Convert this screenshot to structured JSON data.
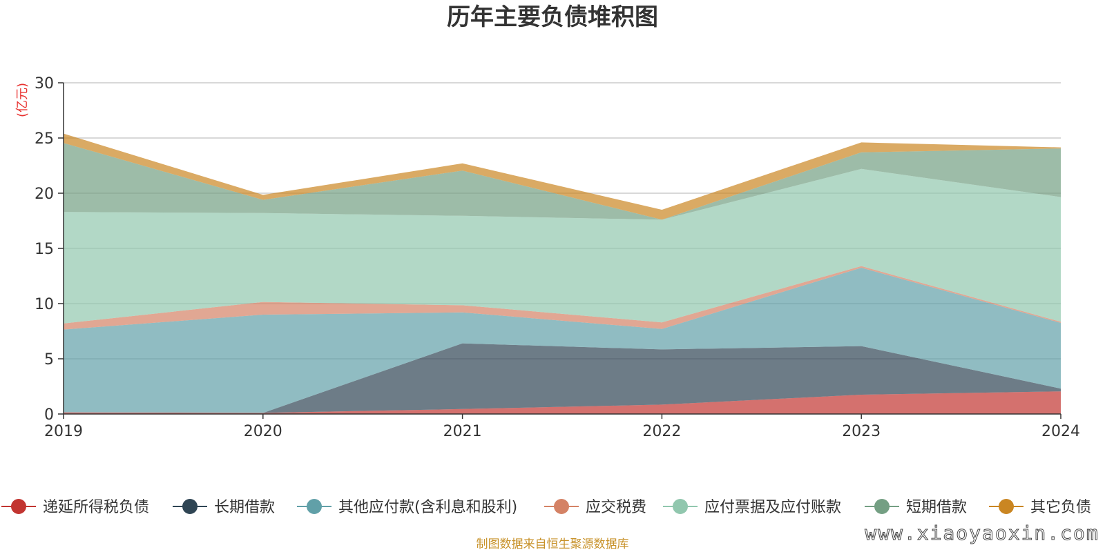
{
  "chart_data": {
    "type": "area",
    "stacked": true,
    "title": "历年主要负债堆积图",
    "unit_label": "(亿元)",
    "x": [
      "2019",
      "2020",
      "2021",
      "2022",
      "2023",
      "2024"
    ],
    "ylim": [
      0,
      30
    ],
    "yticks": [
      0,
      5,
      10,
      15,
      20,
      25,
      30
    ],
    "grid": true,
    "legend_position": "bottom",
    "series": [
      {
        "name": "递延所得税负债",
        "color": "#c23531",
        "values": [
          0.15,
          0.1,
          0.45,
          0.85,
          1.75,
          2.05
        ]
      },
      {
        "name": "长期借款",
        "color": "#2f4554",
        "values": [
          0.0,
          0.0,
          5.95,
          5.0,
          4.4,
          0.25
        ]
      },
      {
        "name": "其他应付款(含利息和股利)",
        "color": "#61a0a8",
        "values": [
          7.5,
          8.9,
          2.8,
          1.85,
          7.1,
          5.95
        ]
      },
      {
        "name": "应交税费",
        "color": "#d48265",
        "values": [
          0.55,
          1.15,
          0.65,
          0.6,
          0.15,
          0.1
        ]
      },
      {
        "name": "应付票据及应付账款",
        "color": "#91c7ae",
        "values": [
          10.1,
          8.05,
          8.1,
          9.3,
          8.8,
          11.3
        ]
      },
      {
        "name": "短期借款",
        "color": "#749f83",
        "values": [
          6.25,
          1.2,
          4.1,
          0.0,
          1.5,
          4.4
        ]
      },
      {
        "name": "其它负债",
        "color": "#ca8622",
        "values": [
          0.85,
          0.45,
          0.65,
          0.9,
          0.9,
          0.1
        ]
      }
    ]
  },
  "footer": {
    "source": "制图数据来自恒生聚源数据库",
    "watermark": "www.xiaoyaoxin.com"
  }
}
